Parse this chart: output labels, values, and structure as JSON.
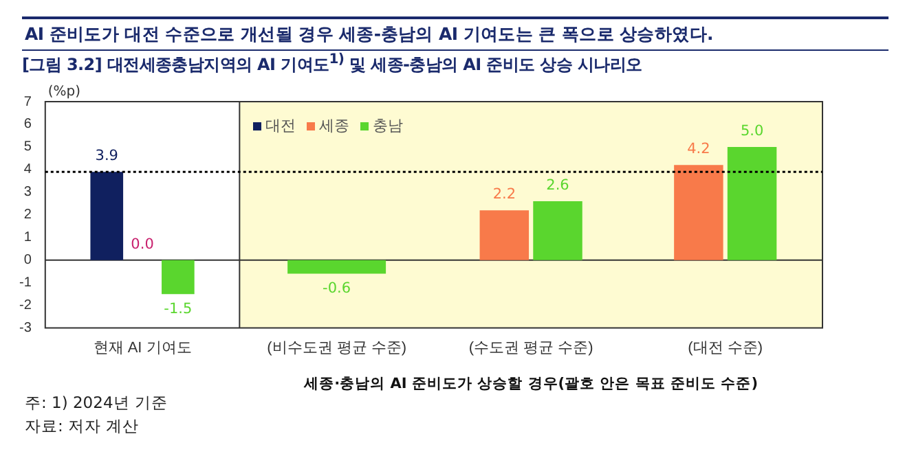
{
  "chart_data": {
    "type": "bar",
    "title": "AI 준비도가 대전 수준으로 개선될 경우 세종-충남의 AI 기여도는 큰 폭으로 상승하였다.",
    "subtitle": "[그림 3.2] 대전세종충남지역의 AI 기여도$^{1)}$ 및 세종-충남의 AI 준비도 상승 시나리오",
    "ylabel": "(%p)",
    "xlabel": "세종·충남의 AI 준비도가 상승할 경우(괄호 안은 목표 준비도 수준)",
    "categories": [
      "현재 AI 기여도",
      "(비수도권 평균 수준)",
      "(수도권 평균 수준)",
      "(대전 수준)"
    ],
    "series": [
      {
        "name": "대전",
        "color": "#10205f",
        "values": [
          3.9,
          null,
          null,
          null
        ],
        "value_labels": [
          "3.9",
          null,
          null,
          null
        ]
      },
      {
        "name": "세종",
        "color": "#f87a4a",
        "colors": [
          "#c8216e",
          "#f87a4a",
          "#f87a4a",
          "#f87a4a"
        ],
        "values": [
          0.0,
          null,
          2.2,
          4.2
        ],
        "value_labels": [
          "0.0",
          null,
          "2.2",
          "4.2"
        ]
      },
      {
        "name": "충남",
        "color": "#5ad62e",
        "values": [
          -1.5,
          -0.6,
          2.6,
          5.0
        ],
        "value_labels": [
          "-1.5",
          "-0.6",
          "2.6",
          "5.0"
        ]
      }
    ],
    "ylim": [
      -3,
      7
    ],
    "yticks": [
      -3,
      -2,
      -1,
      0,
      1,
      2,
      3,
      4,
      5,
      6,
      7
    ],
    "legend": "top left",
    "ref_lines": [
      {
        "axis": "y",
        "value": 3.9,
        "line_style": "dotted",
        "color": "#000000"
      }
    ],
    "bands": [
      {
        "axis": "x",
        "from": "(비수도권 평균 수준)",
        "to": "(대전 수준)",
        "color": "#fefbd2"
      }
    ],
    "annotations": [
      "주: 1) 2024년 기준",
      "자료: 저자 계산"
    ]
  }
}
